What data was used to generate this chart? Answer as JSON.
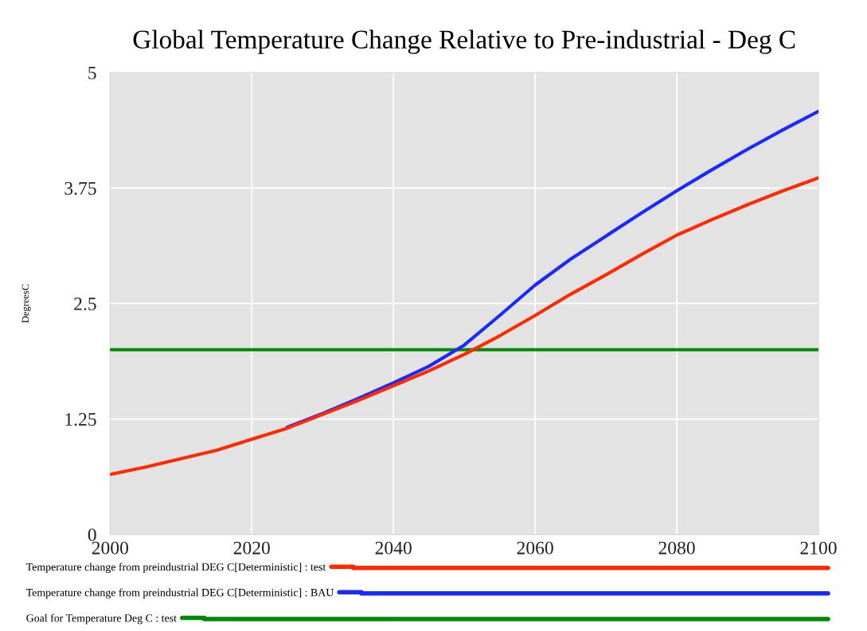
{
  "chart_data": {
    "type": "line",
    "title": "Global Temperature Change Relative to Pre-industrial - Deg C",
    "ylabel": "DegreesC",
    "x": [
      2000,
      2005,
      2010,
      2015,
      2020,
      2025,
      2030,
      2035,
      2040,
      2045,
      2050,
      2055,
      2060,
      2065,
      2070,
      2075,
      2080,
      2085,
      2090,
      2095,
      2100
    ],
    "series": [
      {
        "name": "Temperature change from preindustrial DEG C[Deterministic] : test",
        "color": "#ff2a00",
        "values": [
          0.65,
          0.73,
          0.82,
          0.91,
          1.03,
          1.15,
          1.3,
          1.45,
          1.61,
          1.77,
          1.95,
          2.15,
          2.37,
          2.6,
          2.81,
          3.03,
          3.24,
          3.41,
          3.57,
          3.72,
          3.86
        ]
      },
      {
        "name": "Temperature change from preindustrial DEG C[Deterministic] : BAU",
        "color": "#1a2aff",
        "values": [
          null,
          null,
          null,
          null,
          null,
          1.16,
          1.31,
          1.47,
          1.64,
          1.82,
          2.05,
          2.37,
          2.7,
          2.98,
          3.23,
          3.48,
          3.72,
          3.95,
          4.17,
          4.38,
          4.58
        ]
      },
      {
        "name": "Goal for Temperature Deg C : test",
        "color": "#008800",
        "values": [
          2,
          2,
          2,
          2,
          2,
          2,
          2,
          2,
          2,
          2,
          2,
          2,
          2,
          2,
          2,
          2,
          2,
          2,
          2,
          2,
          2
        ]
      }
    ],
    "xlim": [
      2000,
      2100
    ],
    "xticks": [
      2000,
      2020,
      2040,
      2060,
      2080,
      2100
    ],
    "ylim": [
      0,
      5
    ],
    "yticks": [
      0,
      1.25,
      2.5,
      3.75,
      5
    ],
    "grid": true,
    "legend": "bottom",
    "marker": "none",
    "line_style": "solid"
  }
}
